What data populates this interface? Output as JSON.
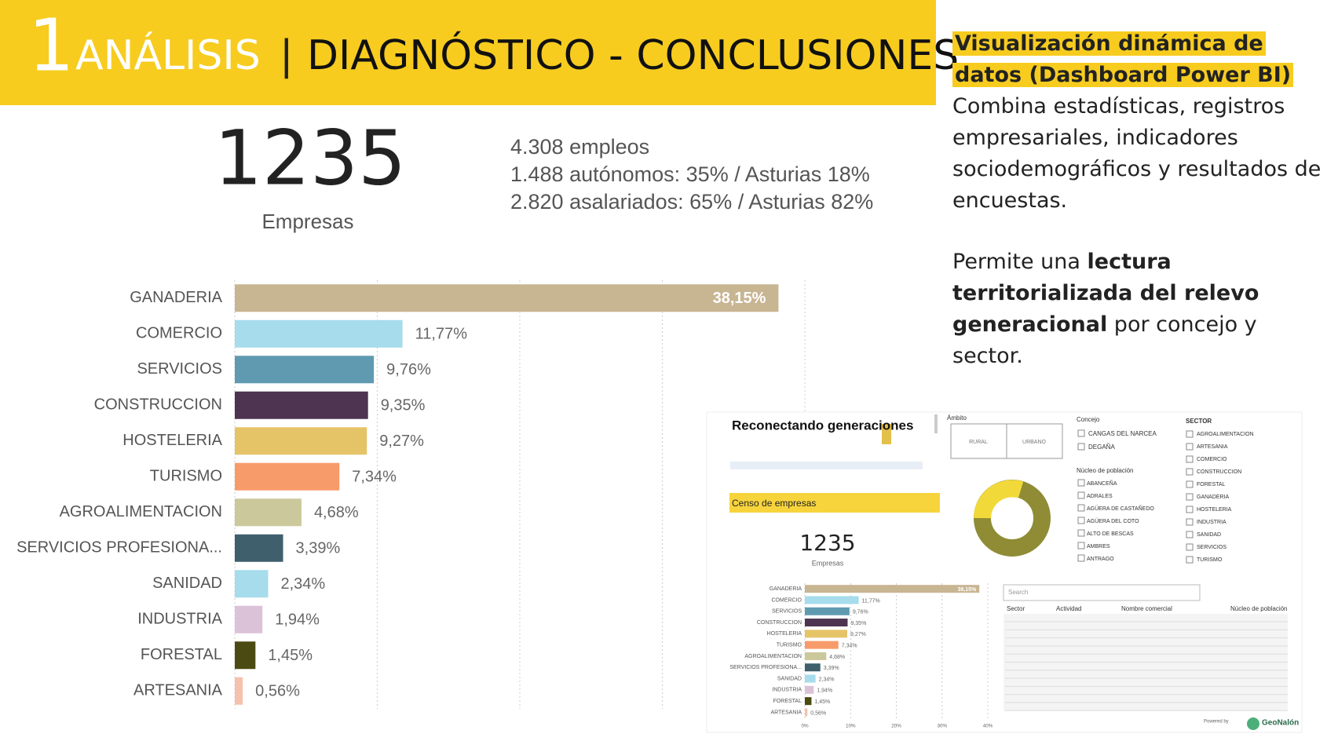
{
  "header": {
    "number": "1",
    "title": "ANÁLISIS",
    "separator": "|",
    "subtitle": "DIAGNÓSTICO - CONCLUSIONES"
  },
  "kpi": {
    "value": "1235",
    "label": "Empresas"
  },
  "stats": [
    "4.308 empleos",
    "1.488 autónomos: 35% / Asturias 18%",
    "2.820 asalariados: 65% / Asturias 82%"
  ],
  "sidebar": {
    "heading": "Visualización dinámica de datos (Dashboard Power BI)",
    "paragraph1": "Combina estadísticas, registros empresariales, indicadores sociodemográficos y resultados de encuestas.",
    "paragraph2": {
      "before": "Permite una ",
      "bold": "lectura territorializada del relevo generacional",
      "after": " por concejo y sector."
    }
  },
  "chart_data": {
    "type": "bar",
    "orientation": "horizontal",
    "categories": [
      "GANADERIA",
      "COMERCIO",
      "SERVICIOS",
      "CONSTRUCCION",
      "HOSTELERIA",
      "TURISMO",
      "AGROALIMENTACION",
      "SERVICIOS PROFESIONA...",
      "SANIDAD",
      "INDUSTRIA",
      "FORESTAL",
      "ARTESANIA"
    ],
    "values": [
      38.15,
      11.77,
      9.76,
      9.35,
      9.27,
      7.34,
      4.68,
      3.39,
      2.34,
      1.94,
      1.45,
      0.56
    ],
    "value_labels": [
      "38,15%",
      "11,77%",
      "9,76%",
      "9,35%",
      "9,27%",
      "7,34%",
      "4,68%",
      "3,39%",
      "2,34%",
      "1,94%",
      "1,45%",
      "0,56%"
    ],
    "colors": [
      "#c8b592",
      "#a6dcec",
      "#5f9ab0",
      "#4e3450",
      "#e5c468",
      "#f89b6b",
      "#cbc89c",
      "#3f5f6c",
      "#a6dcec",
      "#dcc2d9",
      "#4b4a12",
      "#f5c2ad"
    ],
    "xlim": [
      0,
      40
    ],
    "xticks": [
      {
        "value": 0,
        "label": "0%"
      },
      {
        "value": 10,
        "label": "10%"
      },
      {
        "value": 20,
        "label": "20%"
      },
      {
        "value": 30,
        "label": "30%"
      },
      {
        "value": 40,
        "label": "40%"
      }
    ],
    "grid": true
  },
  "dashboard": {
    "title": "Reconectando generaciones",
    "section": "Censo de empresas",
    "kpi_value": "1235",
    "kpi_label": "Empresas",
    "ambito_label": "Ámbito",
    "ambito_options": [
      "RURAL",
      "URBANO"
    ],
    "concejo_label": "Concejo",
    "concejo_options": [
      "CANGAS DEL NARCEA",
      "DEGAÑA"
    ],
    "poblacion_label": "Núcleo de población",
    "poblacion_options": [
      "ABANCEÑA",
      "ADRALES",
      "AGÜERA DE CASTAÑEDO",
      "AGÜERA DEL COTO",
      "ALTO DE BESCAS",
      "AMBRES",
      "ANTRAGO"
    ],
    "sector_label": "SECTOR",
    "sector_options": [
      "AGROALIMENTACION",
      "ARTESANIA",
      "COMERCIO",
      "CONSTRUCCION",
      "FORESTAL",
      "GANADERIA",
      "HOSTELERIA",
      "INDUSTRIA",
      "SANIDAD",
      "SERVICIOS",
      "TURISMO"
    ],
    "search": "Search",
    "table_headers": [
      "Sector",
      "Actividad",
      "Nombre comercial",
      "Núcleo de población"
    ],
    "powered": "Powered by",
    "brand": "GeoNalón"
  }
}
